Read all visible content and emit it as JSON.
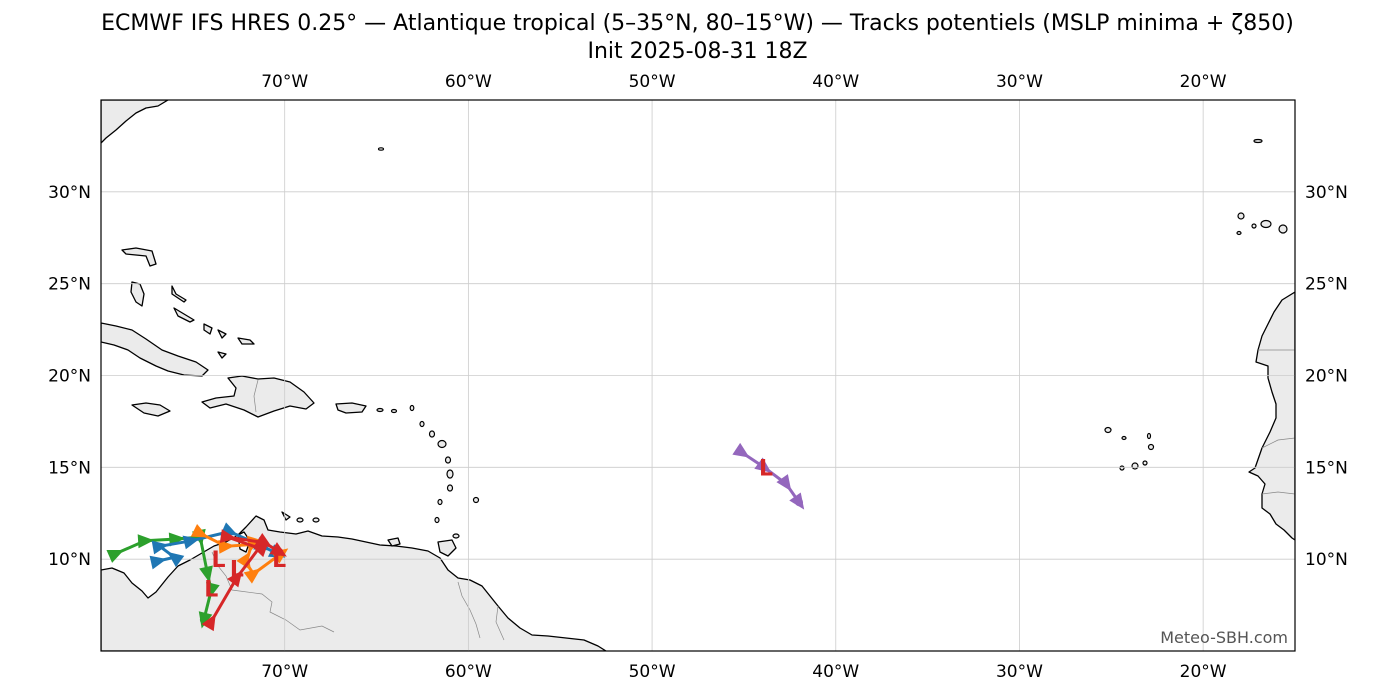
{
  "title": {
    "line1": "ECMWF IFS HRES 0.25° — Atlantique tropical (5–35°N, 80–15°W) — Tracks potentiels (MSLP minima + ζ850)",
    "line2": "Init 2025-08-31 18Z"
  },
  "map": {
    "extent": {
      "lon_min": -80,
      "lon_max": -15,
      "lat_min": 5,
      "lat_max": 35
    },
    "lon_ticks": [
      {
        "lon": -70,
        "label": "70°W"
      },
      {
        "lon": -60,
        "label": "60°W"
      },
      {
        "lon": -50,
        "label": "50°W"
      },
      {
        "lon": -40,
        "label": "40°W"
      },
      {
        "lon": -30,
        "label": "30°W"
      },
      {
        "lon": -20,
        "label": "20°W"
      }
    ],
    "lat_ticks": [
      {
        "lat": 30,
        "label": "30°N"
      },
      {
        "lat": 25,
        "label": "25°N"
      },
      {
        "lat": 20,
        "label": "20°N"
      },
      {
        "lat": 15,
        "label": "15°N"
      },
      {
        "lat": 10,
        "label": "10°N"
      }
    ],
    "land_color": "#ebebeb",
    "grid_color": "#cccccc",
    "low_marker_label": "L",
    "low_marker_color": "#d62728",
    "credit": "Meteo-SBH.com"
  },
  "tracks": [
    {
      "color": "#9467bd",
      "points": [
        [
          -45.1,
          15.8
        ],
        [
          -43.9,
          15.0
        ],
        [
          -42.7,
          14.1
        ],
        [
          -42.0,
          13.1
        ]
      ],
      "lows": [
        [
          -43.8,
          15.0
        ]
      ]
    },
    {
      "color": "#2ca02c",
      "points": [
        [
          -79.2,
          10.3
        ],
        [
          -77.6,
          11.0
        ],
        [
          -75.9,
          11.1
        ],
        [
          -74.6,
          11.2
        ],
        [
          -74.2,
          9.2
        ],
        [
          -74.0,
          8.3
        ],
        [
          -74.4,
          6.7
        ]
      ],
      "lows": [
        [
          -74.0,
          8.4
        ]
      ]
    },
    {
      "color": "#1f77b4",
      "points": [
        [
          -76.9,
          9.9
        ],
        [
          -76.0,
          10.1
        ],
        [
          -76.8,
          10.7
        ],
        [
          -75.1,
          11.0
        ],
        [
          -73.0,
          11.5
        ],
        [
          -71.2,
          10.7
        ],
        [
          -70.4,
          10.3
        ]
      ],
      "lows": []
    },
    {
      "color": "#ff7f0e",
      "points": [
        [
          -74.6,
          11.4
        ],
        [
          -73.2,
          10.7
        ],
        [
          -71.8,
          10.8
        ],
        [
          -72.1,
          9.8
        ],
        [
          -71.7,
          9.2
        ],
        [
          -70.2,
          10.3
        ]
      ],
      "lows": [
        [
          -73.6,
          10.0
        ]
      ]
    },
    {
      "color": "#d62728",
      "points": [
        [
          -74.0,
          6.6
        ],
        [
          -72.6,
          9.0
        ],
        [
          -71.4,
          10.6
        ],
        [
          -73.1,
          11.2
        ],
        [
          -71.1,
          10.9
        ],
        [
          -70.3,
          10.4
        ]
      ],
      "lows": [
        [
          -70.3,
          10.0
        ],
        [
          -72.6,
          9.5
        ]
      ]
    }
  ]
}
